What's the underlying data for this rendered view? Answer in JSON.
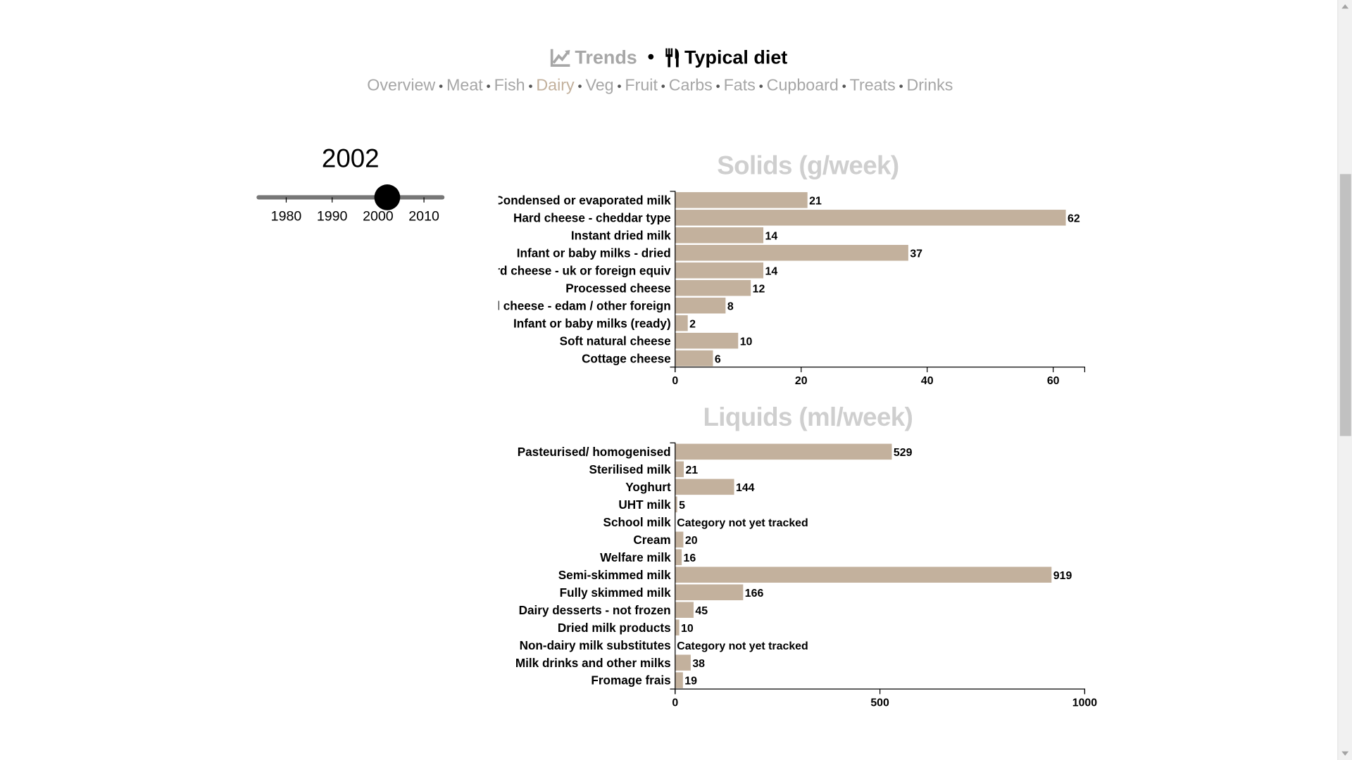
{
  "header": {
    "trends_label": "Trends",
    "typical_label": "Typical diet",
    "separator": "•",
    "trends_icon": "line-chart-icon",
    "typical_icon": "cutlery-icon"
  },
  "nav": {
    "separator": "•",
    "items": [
      "Overview",
      "Meat",
      "Fish",
      "Dairy",
      "Veg",
      "Fruit",
      "Carbs",
      "Fats",
      "Cupboard",
      "Treats",
      "Drinks"
    ],
    "active": "Dairy"
  },
  "year_slider": {
    "year": "2002",
    "ticks": [
      "1980",
      "1990",
      "2000",
      "2010"
    ],
    "tick_values": [
      1980,
      1990,
      2000,
      2010
    ],
    "min": 1974,
    "max": 2014,
    "value": 2002
  },
  "colors": {
    "bar": "#c3b19d",
    "title": "#cfcfcf",
    "nav_active": "#c3b19d",
    "nav": "#a6a6a6"
  },
  "chart_data": [
    {
      "type": "bar",
      "orientation": "horizontal",
      "title": "Solids (g/week)",
      "categories": [
        "Condensed or evaporated milk",
        "Hard cheese - cheddar type",
        "Instant dried milk",
        "Infant or baby milks - dried",
        "Hard cheese - uk or foreign equiv",
        "Processed cheese",
        "Hard cheese - edam / other foreign",
        "Infant or baby milks (ready)",
        "Soft natural cheese",
        "Cottage cheese"
      ],
      "values": [
        21,
        62,
        14,
        37,
        14,
        12,
        8,
        2,
        10,
        6
      ],
      "value_labels": [
        "21",
        "62",
        "14",
        "37",
        "14",
        "12",
        "8",
        "2",
        "10",
        "6"
      ],
      "xlim": [
        0,
        65
      ],
      "xticks": [
        "0",
        "20",
        "40",
        "60"
      ],
      "xtick_values": [
        0,
        20,
        40,
        60
      ]
    },
    {
      "type": "bar",
      "orientation": "horizontal",
      "title": "Liquids (ml/week)",
      "categories": [
        "Pasteurised/ homogenised",
        "Sterilised milk",
        "Yoghurt",
        "UHT milk",
        "School milk",
        "Cream",
        "Welfare milk",
        "Semi-skimmed milk",
        "Fully skimmed milk",
        "Dairy desserts - not frozen",
        "Dried milk products",
        "Non-dairy milk substitutes",
        "Milk drinks and other milks",
        "Fromage frais"
      ],
      "values": [
        529,
        21,
        144,
        5,
        null,
        20,
        16,
        919,
        166,
        45,
        10,
        null,
        38,
        19
      ],
      "value_labels": [
        "529",
        "21",
        "144",
        "5",
        "Category not yet tracked",
        "20",
        "16",
        "919",
        "166",
        "45",
        "10",
        "Category not yet tracked",
        "38",
        "19"
      ],
      "xlim": [
        0,
        1000
      ],
      "xticks": [
        "0",
        "500",
        "1000"
      ],
      "xtick_values": [
        0,
        500,
        1000
      ]
    }
  ]
}
